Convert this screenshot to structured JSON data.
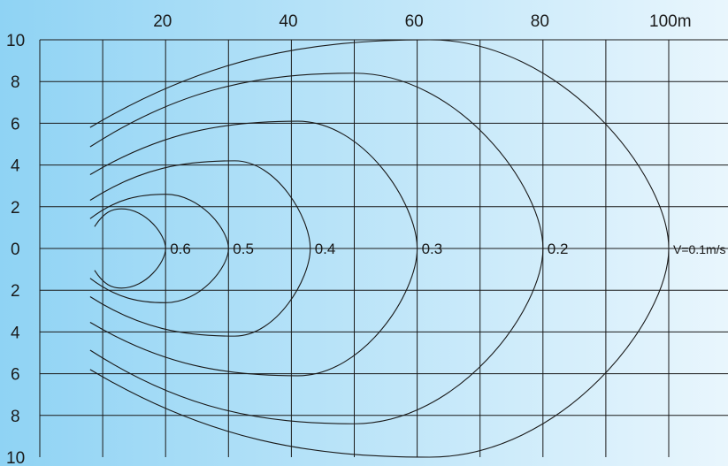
{
  "diagram": {
    "background": {
      "left": "#8fd3f4",
      "right": "#e9f6fd"
    },
    "line_color": "#1a1a1a",
    "x_axis": {
      "range": [
        0,
        100
      ],
      "grid_values": [
        10,
        20,
        30,
        40,
        50,
        60,
        70,
        80,
        90,
        100
      ],
      "ticks": [
        {
          "value": 20,
          "label": "20"
        },
        {
          "value": 40,
          "label": "40"
        },
        {
          "value": 60,
          "label": "60"
        },
        {
          "value": 80,
          "label": "80"
        },
        {
          "value": 100,
          "label": "100m"
        }
      ]
    },
    "y_axis": {
      "range": [
        -10,
        10
      ],
      "grid_values": [
        -8,
        -6,
        -4,
        -2,
        0,
        2,
        4,
        6,
        8,
        10
      ],
      "ticks": [
        {
          "value": 10,
          "label": "10"
        },
        {
          "value": 8,
          "label": "8"
        },
        {
          "value": 6,
          "label": "6"
        },
        {
          "value": 4,
          "label": "4"
        },
        {
          "value": 2,
          "label": "2"
        },
        {
          "value": 0,
          "label": "0"
        },
        {
          "value": -2,
          "label": "2"
        },
        {
          "value": -4,
          "label": "4"
        },
        {
          "value": -6,
          "label": "6"
        },
        {
          "value": -8,
          "label": "8"
        },
        {
          "value": -10,
          "label": "10"
        }
      ]
    },
    "contours": [
      {
        "label": "0.6",
        "tip_x": 20,
        "half_width": 1.9,
        "peak_x": 13,
        "start_x": 8
      },
      {
        "label": "0.5",
        "tip_x": 30,
        "half_width": 2.6,
        "peak_x": 20,
        "start_x": 8
      },
      {
        "label": "0.4",
        "tip_x": 43,
        "half_width": 4.2,
        "peak_x": 31,
        "start_x": 8
      },
      {
        "label": "0.3",
        "tip_x": 60,
        "half_width": 6.1,
        "peak_x": 41,
        "start_x": 8
      },
      {
        "label": "0.2",
        "tip_x": 80,
        "half_width": 8.4,
        "peak_x": 50,
        "start_x": 8
      },
      {
        "label": "V=0.1m/s",
        "tip_x": 100,
        "half_width": 10,
        "peak_x": 62,
        "start_x": 8
      }
    ]
  }
}
